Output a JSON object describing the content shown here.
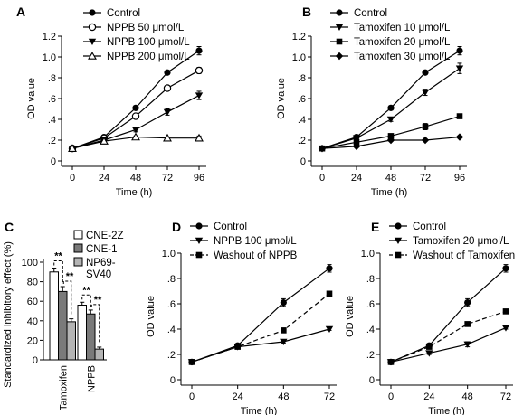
{
  "chart_data": [
    {
      "panel": "A",
      "type": "line",
      "x": [
        0,
        24,
        48,
        72,
        96
      ],
      "xticks": [
        "0",
        "24",
        "48",
        "72",
        "96"
      ],
      "yticks": [
        "0",
        ".2",
        ".4",
        ".6",
        ".8",
        "1.0",
        "1.2"
      ],
      "xlabel": "Time (h)",
      "ylabel": "OD value",
      "ylim": [
        0,
        1.2
      ],
      "legend": "top-left",
      "series": [
        {
          "name": "Control",
          "marker": "circle-filled",
          "dash": false,
          "values": [
            0.12,
            0.23,
            0.51,
            0.85,
            1.06
          ],
          "errors": [
            0.01,
            0.01,
            0.02,
            0.02,
            0.04
          ]
        },
        {
          "name": "NPPB 50 μmol/L",
          "marker": "circle-open",
          "dash": false,
          "values": [
            0.12,
            0.22,
            0.43,
            0.7,
            0.87
          ],
          "errors": [
            0.01,
            0.01,
            0.02,
            0.02,
            0.03
          ]
        },
        {
          "name": "NPPB 100 μmol/L",
          "marker": "triangle-down",
          "dash": false,
          "values": [
            0.12,
            0.2,
            0.3,
            0.47,
            0.63
          ],
          "errors": [
            0.01,
            0.01,
            0.02,
            0.03,
            0.04
          ]
        },
        {
          "name": "NPPB 200 μmol/L",
          "marker": "triangle-open",
          "dash": false,
          "values": [
            0.12,
            0.19,
            0.23,
            0.22,
            0.22
          ],
          "errors": [
            0.01,
            0.01,
            0.01,
            0.01,
            0.02
          ]
        }
      ]
    },
    {
      "panel": "B",
      "type": "line",
      "x": [
        0,
        24,
        48,
        72,
        96
      ],
      "xticks": [
        "0",
        "24",
        "48",
        "72",
        "96"
      ],
      "yticks": [
        "0",
        ".2",
        ".4",
        ".6",
        ".8",
        "1.0",
        "1.2"
      ],
      "xlabel": "Time (h)",
      "ylabel": "OD value",
      "ylim": [
        0,
        1.2
      ],
      "legend": "top-left",
      "series": [
        {
          "name": "Control",
          "marker": "circle-filled",
          "dash": false,
          "values": [
            0.12,
            0.23,
            0.51,
            0.85,
            1.06
          ],
          "errors": [
            0.01,
            0.01,
            0.02,
            0.02,
            0.04
          ]
        },
        {
          "name": "Tamoxifen 10 μmol/L",
          "marker": "triangle-down",
          "dash": false,
          "values": [
            0.12,
            0.22,
            0.4,
            0.66,
            0.89
          ],
          "errors": [
            0.01,
            0.01,
            0.02,
            0.03,
            0.05
          ]
        },
        {
          "name": "Tamoxifen 20 μmol/L",
          "marker": "square",
          "dash": false,
          "values": [
            0.12,
            0.18,
            0.24,
            0.33,
            0.43
          ],
          "errors": [
            0.01,
            0.01,
            0.02,
            0.03,
            0.02
          ]
        },
        {
          "name": "Tamoxifen 30 μmol/L",
          "marker": "diamond",
          "dash": false,
          "values": [
            0.12,
            0.14,
            0.2,
            0.2,
            0.23
          ],
          "errors": [
            0.01,
            0.01,
            0.01,
            0.01,
            0.01
          ]
        }
      ]
    },
    {
      "panel": "C",
      "type": "bar",
      "categories": [
        "Tamoxifen",
        "NPPB"
      ],
      "ylabel": "Standardized inhibitory effect (%)",
      "yticks": [
        "0",
        "20",
        "40",
        "60",
        "80",
        "100"
      ],
      "ylim": [
        0,
        100
      ],
      "legend": "top-right",
      "series": [
        {
          "name": "CNE-2Z",
          "color": "#ffffff",
          "values": [
            90,
            56
          ],
          "errors": [
            4,
            3
          ]
        },
        {
          "name": "CNE-1",
          "color": "#7a7a7a",
          "values": [
            70,
            47
          ],
          "errors": [
            5,
            4
          ]
        },
        {
          "name": "NP69-SV40",
          "color": "#b4b4b4",
          "values": [
            39,
            11
          ],
          "errors": [
            3,
            2
          ]
        }
      ],
      "significance": "**"
    },
    {
      "panel": "D",
      "type": "line",
      "x": [
        0,
        24,
        48,
        72
      ],
      "xticks": [
        "0",
        "24",
        "48",
        "72"
      ],
      "yticks": [
        "0",
        ".2",
        ".4",
        ".6",
        ".8",
        "1.0"
      ],
      "xlabel": "Time (h)",
      "ylabel": "OD value",
      "ylim": [
        0,
        1.0
      ],
      "legend": "top-left",
      "series": [
        {
          "name": "Control",
          "marker": "circle-filled",
          "dash": false,
          "values": [
            0.14,
            0.27,
            0.61,
            0.88
          ],
          "errors": [
            0.01,
            0.01,
            0.03,
            0.03
          ]
        },
        {
          "name": "NPPB 100 μmol/L",
          "marker": "triangle-down",
          "dash": false,
          "values": [
            0.14,
            0.26,
            0.3,
            0.4
          ],
          "errors": [
            0.01,
            0.01,
            0.01,
            0.01
          ]
        },
        {
          "name": "Washout of NPPB",
          "marker": "square",
          "dash": true,
          "values": [
            0.14,
            0.26,
            0.39,
            0.68
          ],
          "errors": [
            0.01,
            0.01,
            0.01,
            0.01
          ]
        }
      ]
    },
    {
      "panel": "E",
      "type": "line",
      "x": [
        0,
        24,
        48,
        72
      ],
      "xticks": [
        "0",
        "24",
        "48",
        "72"
      ],
      "yticks": [
        "0",
        ".2",
        ".4",
        ".6",
        ".8",
        "1.0"
      ],
      "xlabel": "Time (h)",
      "ylabel": "OD value",
      "ylim": [
        0,
        1.0
      ],
      "legend": "top-left",
      "series": [
        {
          "name": "Control",
          "marker": "circle-filled",
          "dash": false,
          "values": [
            0.14,
            0.27,
            0.61,
            0.88
          ],
          "errors": [
            0.01,
            0.01,
            0.03,
            0.03
          ]
        },
        {
          "name": "Tamoxifen 20 μmol/L",
          "marker": "triangle-down",
          "dash": false,
          "values": [
            0.14,
            0.21,
            0.28,
            0.41
          ],
          "errors": [
            0.01,
            0.01,
            0.02,
            0.01
          ]
        },
        {
          "name": "Washout of Tamoxifen",
          "marker": "square",
          "dash": true,
          "values": [
            0.14,
            0.26,
            0.44,
            0.54
          ],
          "errors": [
            0.01,
            0.01,
            0.01,
            0.01
          ]
        }
      ]
    }
  ]
}
